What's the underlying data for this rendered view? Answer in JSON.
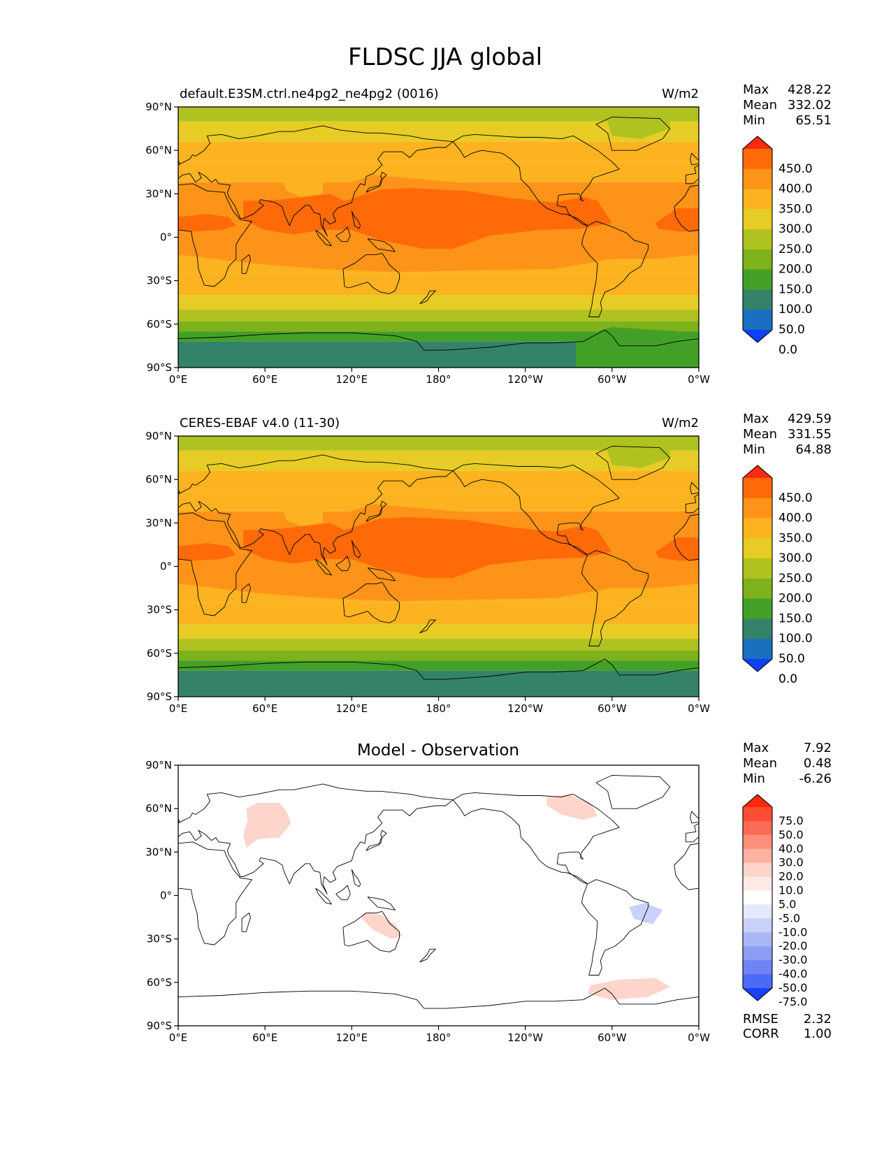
{
  "figure": {
    "title": "FLDSC JJA global"
  },
  "x_ticks": [
    "0°E",
    "60°E",
    "120°E",
    "180°",
    "120°W",
    "60°W",
    "0°W"
  ],
  "y_ticks": [
    "90°N",
    "60°N",
    "30°N",
    "0°",
    "30°S",
    "60°S",
    "90°S"
  ],
  "panels": [
    {
      "title_left": "default.E3SM.ctrl.ne4pg2_ne4pg2 (0016)",
      "title_right": "W/m2",
      "stats": [
        {
          "label": "Max",
          "value": "428.22"
        },
        {
          "label": "Mean",
          "value": "332.02"
        },
        {
          "label": "Min",
          "value": "65.51"
        }
      ],
      "colorbar_labels": [
        "450.0",
        "400.0",
        "350.0",
        "300.0",
        "250.0",
        "200.0",
        "150.0",
        "100.0",
        "50.0",
        "0.0"
      ]
    },
    {
      "title_left": "CERES-EBAF v4.0 (11-30)",
      "title_right": "W/m2",
      "stats": [
        {
          "label": "Max",
          "value": "429.59"
        },
        {
          "label": "Mean",
          "value": "331.55"
        },
        {
          "label": "Min",
          "value": "64.88"
        }
      ],
      "colorbar_labels": [
        "450.0",
        "400.0",
        "350.0",
        "300.0",
        "250.0",
        "200.0",
        "150.0",
        "100.0",
        "50.0",
        "0.0"
      ]
    },
    {
      "title_center": "Model - Observation",
      "stats": [
        {
          "label": "Max",
          "value": "7.92"
        },
        {
          "label": "Mean",
          "value": "0.48"
        },
        {
          "label": "Min",
          "value": "-6.26"
        }
      ],
      "colorbar_labels": [
        "75.0",
        "50.0",
        "40.0",
        "30.0",
        "20.0",
        "10.0",
        "5.0",
        "-5.0",
        "-10.0",
        "-20.0",
        "-30.0",
        "-40.0",
        "-50.0",
        "-75.0"
      ],
      "metrics": [
        {
          "label": "RMSE",
          "value": "2.32"
        },
        {
          "label": "CORR",
          "value": "1.00"
        }
      ]
    }
  ],
  "colors": {
    "abs_cbar": [
      "#ff2a10",
      "#ff6a08",
      "#fd9419",
      "#fdb320",
      "#e6cc24",
      "#b0c21f",
      "#7eb21a",
      "#43a026",
      "#34826a",
      "#1a6fbf",
      "#0d40ff"
    ],
    "diff_cbar": [
      "#ff2a0a",
      "#ff4d33",
      "#fb6a55",
      "#fb8f7c",
      "#fcb1a1",
      "#fdd5cb",
      "#fdeae6",
      "#ffffff",
      "#e4e8fb",
      "#c9d1fa",
      "#aab7f7",
      "#8c9df5",
      "#6f83f4",
      "#4b6af7",
      "#1a40ff"
    ]
  }
}
